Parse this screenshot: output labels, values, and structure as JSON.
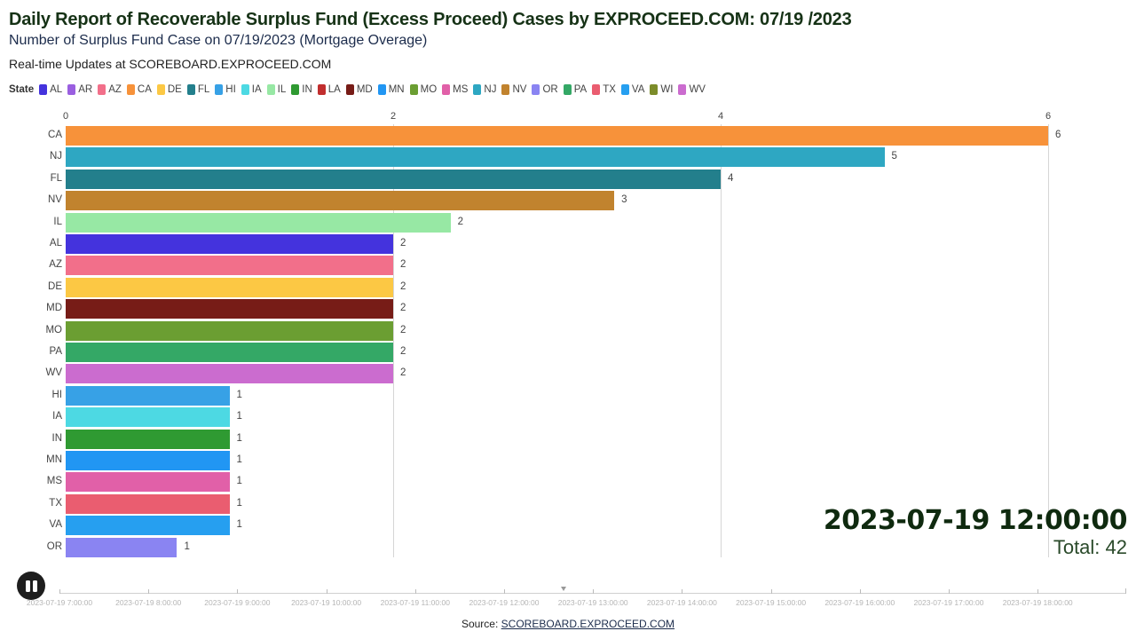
{
  "header": {
    "title": "Daily Report of Recoverable Surplus Fund (Excess Proceed) Cases by EXPROCEED.COM: 07/19 /2023",
    "subtitle": "Number of Surplus Fund Case on 07/19/2023 (Mortgage Overage)",
    "updates": "Real-time Updates at SCOREBOARD.EXPROCEED.COM"
  },
  "legend": {
    "title": "State",
    "items": [
      {
        "label": "AL",
        "color": "#4433dd"
      },
      {
        "label": "AR",
        "color": "#9a5fe0"
      },
      {
        "label": "AZ",
        "color": "#f26f8a"
      },
      {
        "label": "CA",
        "color": "#f7923a"
      },
      {
        "label": "DE",
        "color": "#fcc844"
      },
      {
        "label": "FL",
        "color": "#237f8c"
      },
      {
        "label": "HI",
        "color": "#37a1e6"
      },
      {
        "label": "IA",
        "color": "#4dd9e3"
      },
      {
        "label": "IL",
        "color": "#97e8a4"
      },
      {
        "label": "IN",
        "color": "#2f9a32"
      },
      {
        "label": "LA",
        "color": "#c12e2e"
      },
      {
        "label": "MD",
        "color": "#771c17"
      },
      {
        "label": "MN",
        "color": "#2196f3"
      },
      {
        "label": "MO",
        "color": "#6b9e32"
      },
      {
        "label": "MS",
        "color": "#e160a8"
      },
      {
        "label": "NJ",
        "color": "#2ea7c2"
      },
      {
        "label": "NV",
        "color": "#c1832e"
      },
      {
        "label": "OR",
        "color": "#8a84f2"
      },
      {
        "label": "PA",
        "color": "#34a866"
      },
      {
        "label": "TX",
        "color": "#ea5d70"
      },
      {
        "label": "VA",
        "color": "#269ff0"
      },
      {
        "label": "WI",
        "color": "#7c8c2a"
      },
      {
        "label": "WV",
        "color": "#cb6ccf"
      }
    ]
  },
  "chart_data": {
    "type": "bar",
    "orientation": "horizontal",
    "title": "Number of Surplus Fund Case on 07/19/2023 (Mortgage Overage)",
    "xlabel": "",
    "ylabel": "",
    "xlim": [
      0,
      6
    ],
    "x_ticks": [
      "0",
      "2",
      "4",
      "6"
    ],
    "grid": true,
    "legend_position": "top",
    "categories": [
      "CA",
      "NJ",
      "FL",
      "NV",
      "IL",
      "AL",
      "AZ",
      "DE",
      "MD",
      "MO",
      "PA",
      "WV",
      "HI",
      "IA",
      "IN",
      "MN",
      "MS",
      "TX",
      "VA",
      "OR"
    ],
    "values": [
      6,
      5,
      4,
      3,
      2,
      2,
      2,
      2,
      2,
      2,
      2,
      2,
      1,
      1,
      1,
      1,
      1,
      1,
      1,
      1
    ],
    "bar_rendered_values": [
      6,
      5,
      4,
      3.35,
      2.35,
      2,
      2,
      2,
      2,
      2,
      2,
      2,
      1,
      1,
      1,
      1,
      1,
      1,
      1,
      0.68
    ],
    "colors": [
      "#f7923a",
      "#2ea7c2",
      "#237f8c",
      "#c1832e",
      "#97e8a4",
      "#4433dd",
      "#f26f8a",
      "#fcc844",
      "#771c17",
      "#6b9e32",
      "#34a866",
      "#cb6ccf",
      "#37a1e6",
      "#4dd9e3",
      "#2f9a32",
      "#2196f3",
      "#e160a8",
      "#ea5d70",
      "#269ff0",
      "#8a84f2"
    ]
  },
  "status": {
    "datetime": "2023-07-19 12:00:00",
    "total": "Total: 42"
  },
  "controls": {
    "play_state": "pause-icon"
  },
  "timeline": {
    "labels": [
      "2023-07-19 7:00:00",
      "2023-07-19 8:00:00",
      "2023-07-19 9:00:00",
      "2023-07-19 10:00:00",
      "2023-07-19 11:00:00",
      "2023-07-19 12:00:00",
      "2023-07-19 13:00:00",
      "2023-07-19 14:00:00",
      "2023-07-19 15:00:00",
      "2023-07-19 16:00:00",
      "2023-07-19 17:00:00",
      "2023-07-19 18:00:00"
    ]
  },
  "footer": {
    "source_prefix": "Source: ",
    "source_link": "SCOREBOARD.EXPROCEED.COM"
  }
}
